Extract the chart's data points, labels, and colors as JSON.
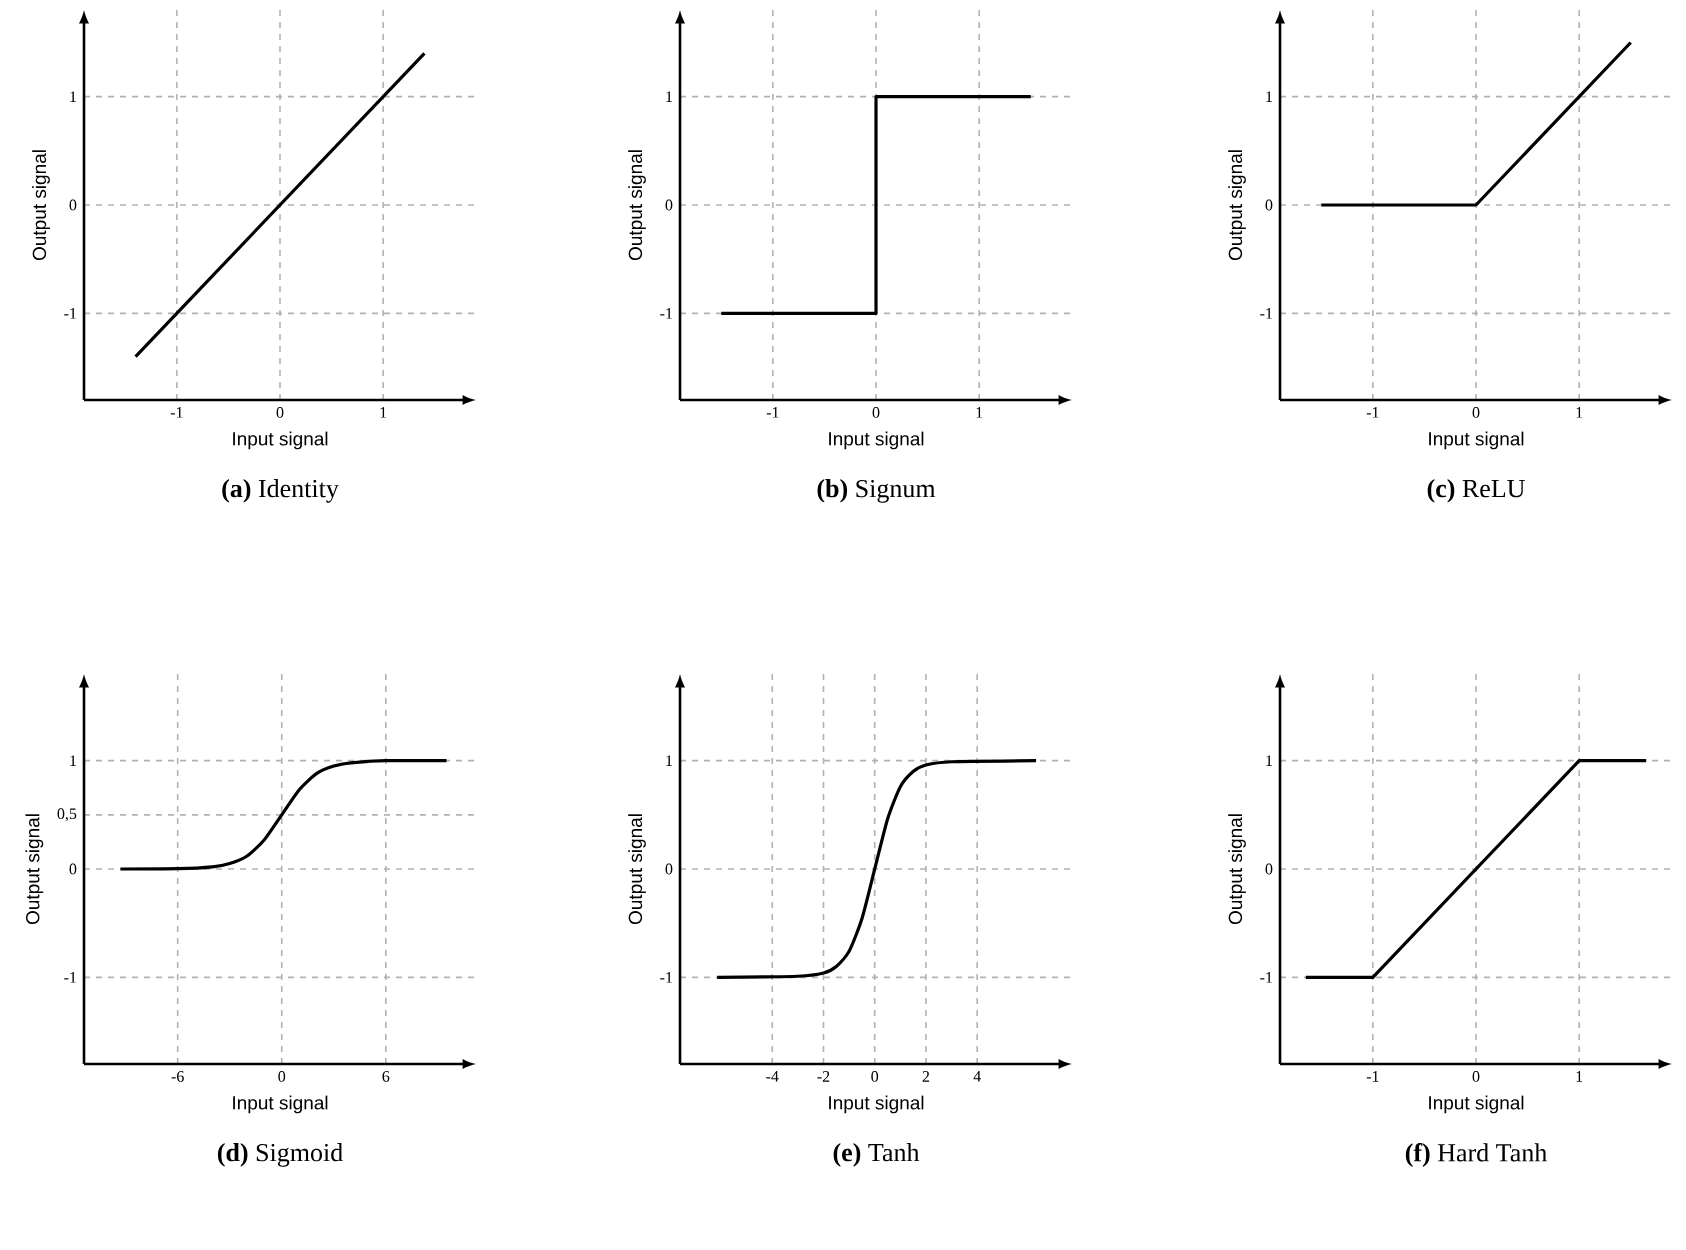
{
  "chart_data": [
    {
      "type": "line",
      "title": "**(a)** Identity",
      "xlabel": "Input signal",
      "ylabel": "Output signal",
      "xlim": [
        -1.9,
        1.9
      ],
      "ylim": [
        -1.8,
        1.8
      ],
      "xticks": [
        -1,
        0,
        1
      ],
      "yticks": [
        -1,
        0,
        1
      ],
      "grid": true,
      "series": [
        {
          "color": "#000000",
          "x": [
            -1.4,
            1.4
          ],
          "values": [
            -1.4,
            1.4
          ]
        }
      ]
    },
    {
      "type": "line",
      "title": "**(b)** Signum",
      "xlabel": "Input signal",
      "ylabel": "Output signal",
      "xlim": [
        -1.9,
        1.9
      ],
      "ylim": [
        -1.8,
        1.8
      ],
      "xticks": [
        -1,
        0,
        1
      ],
      "yticks": [
        -1,
        0,
        1
      ],
      "grid": true,
      "series": [
        {
          "color": "#000000",
          "x": [
            -1.5,
            0,
            0,
            1.5
          ],
          "values": [
            -1,
            -1,
            1,
            1
          ]
        }
      ]
    },
    {
      "type": "line",
      "title": "**(c)** ReLU",
      "xlabel": "Input signal",
      "ylabel": "Output signal",
      "xlim": [
        -1.9,
        1.9
      ],
      "ylim": [
        -1.8,
        1.8
      ],
      "xticks": [
        -1,
        0,
        1
      ],
      "yticks": [
        -1,
        0,
        1
      ],
      "grid": true,
      "series": [
        {
          "color": "#000000",
          "x": [
            -1.5,
            0,
            1.5
          ],
          "values": [
            0,
            0,
            1.5
          ]
        }
      ]
    },
    {
      "type": "line",
      "title": "**(d)** Sigmoid",
      "xlabel": "Input signal",
      "ylabel": "Output signal",
      "xlim": [
        -11.4,
        11.2
      ],
      "ylim": [
        -1.8,
        1.8
      ],
      "xticks": [
        -6,
        0,
        6
      ],
      "yticks": [
        -1,
        0,
        {
          "value": 0.5,
          "label": "0,5"
        },
        1
      ],
      "grid": true,
      "series": [
        {
          "color": "#000000",
          "x": [
            -9.3,
            -6,
            -4,
            -3,
            -2,
            -1,
            0,
            1,
            2,
            3,
            4,
            6,
            9.5
          ],
          "values": [
            0,
            0.003,
            0.02,
            0.05,
            0.12,
            0.27,
            0.5,
            0.73,
            0.88,
            0.95,
            0.98,
            1,
            1
          ]
        }
      ]
    },
    {
      "type": "line",
      "title": "**(e)** Tanh",
      "xlabel": "Input signal",
      "ylabel": "Output signal",
      "xlim": [
        -7.6,
        7.7
      ],
      "ylim": [
        -1.8,
        1.8
      ],
      "xticks": [
        -4,
        -2,
        0,
        2,
        4
      ],
      "yticks": [
        -1,
        0,
        1
      ],
      "grid": true,
      "series": [
        {
          "color": "#000000",
          "x": [
            -6.15,
            -3,
            -2,
            -1.5,
            -1,
            -0.5,
            0,
            0.5,
            1,
            1.5,
            2,
            3,
            6.3
          ],
          "values": [
            -1,
            -0.99,
            -0.96,
            -0.9,
            -0.76,
            -0.46,
            0,
            0.46,
            0.76,
            0.9,
            0.96,
            0.99,
            1
          ]
        }
      ]
    },
    {
      "type": "line",
      "title": "**(f)** Hard Tanh",
      "xlabel": "Input signal",
      "ylabel": "Output signal",
      "xlim": [
        -1.9,
        1.9
      ],
      "ylim": [
        -1.8,
        1.8
      ],
      "xticks": [
        -1,
        0,
        1
      ],
      "yticks": [
        -1,
        0,
        1
      ],
      "grid": true,
      "series": [
        {
          "color": "#000000",
          "x": [
            -1.65,
            -1,
            1,
            1.65
          ],
          "values": [
            -1,
            -1,
            1,
            1
          ]
        }
      ]
    }
  ]
}
